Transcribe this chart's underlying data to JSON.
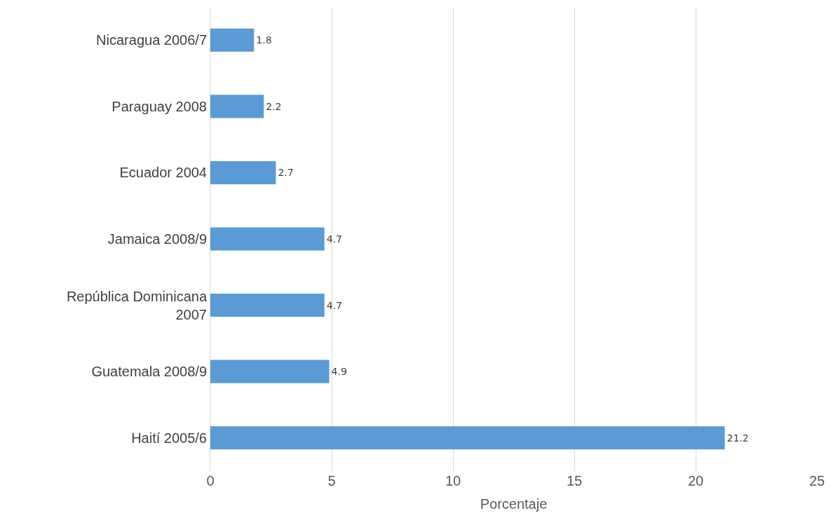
{
  "chart_data": {
    "type": "bar",
    "orientation": "horizontal",
    "xlabel": "Porcentaje",
    "categories": [
      "Nicaragua 2006/7",
      "Paraguay 2008",
      "Ecuador 2004",
      "Jamaica 2008/9",
      "República Dominicana 2007",
      "Guatemala 2008/9",
      "Haití 2005/6"
    ],
    "values": [
      1.8,
      2.2,
      2.7,
      4.7,
      4.7,
      4.9,
      21.2
    ],
    "color": "#5b9bd5",
    "xlim": [
      0,
      25
    ],
    "xticks": [
      0,
      5,
      10,
      15,
      20,
      25
    ],
    "grid": "x",
    "data_labels": true,
    "legend": false
  }
}
